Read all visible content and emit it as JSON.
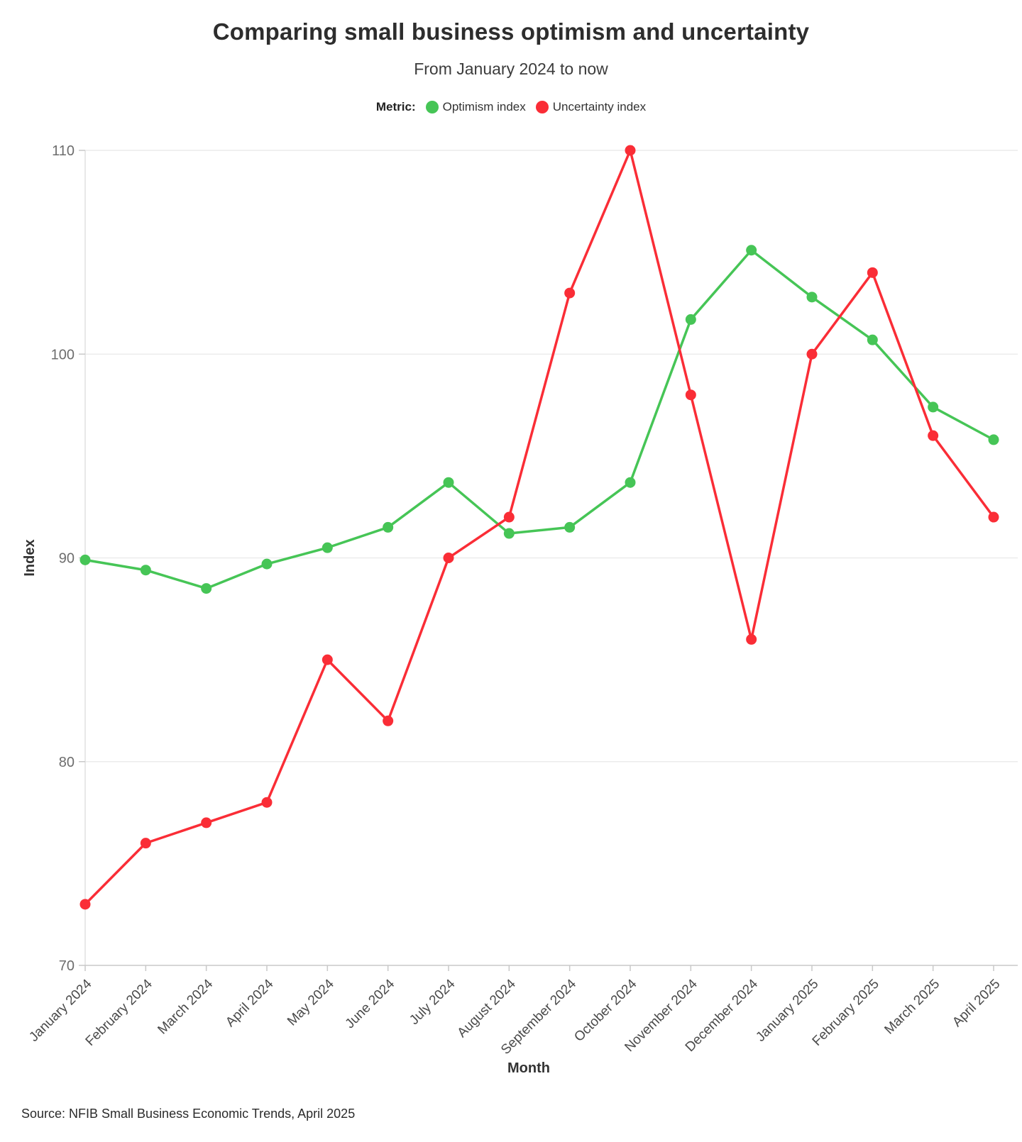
{
  "title": "Comparing small business optimism and uncertainty",
  "subtitle": "From January 2024 to now",
  "legend": {
    "label": "Metric:",
    "items": [
      {
        "label": "Optimism index",
        "color": "#46c556"
      },
      {
        "label": "Uncertainty index",
        "color": "#fa2d36"
      }
    ]
  },
  "source": "Source: NFIB Small Business Economic Trends, April 2025",
  "colors": {
    "optimism": "#46c556",
    "uncertainty": "#fa2d36",
    "gridline": "#ececec",
    "axis_line": "#c9c9c9",
    "y_axis_line": "#e0e0e0",
    "tick_label": "#6d6d6d",
    "month_label": "#4a4a4a",
    "axis_title": "#333333"
  },
  "chart_data": {
    "type": "line",
    "x": [
      "January 2024",
      "February 2024",
      "March 2024",
      "April 2024",
      "May 2024",
      "June 2024",
      "July 2024",
      "August 2024",
      "September 2024",
      "October 2024",
      "November 2024",
      "December 2024",
      "January 2025",
      "February 2025",
      "March 2025",
      "April 2025"
    ],
    "series": [
      {
        "name": "Optimism index",
        "color": "#46c556",
        "values": [
          89.9,
          89.4,
          88.5,
          89.7,
          90.5,
          91.5,
          93.7,
          91.2,
          91.5,
          93.7,
          101.7,
          105.1,
          102.8,
          100.7,
          97.4,
          95.8
        ]
      },
      {
        "name": "Uncertainty index",
        "color": "#fa2d36",
        "values": [
          73,
          76,
          77,
          78,
          85,
          82,
          90,
          92,
          103,
          110,
          98,
          86,
          100,
          104,
          96,
          92
        ]
      }
    ],
    "title": "Comparing small business optimism and uncertainty",
    "subtitle": "From January 2024 to now",
    "xlabel": "Month",
    "ylabel": "Index",
    "ylim": [
      70,
      110
    ],
    "yticks": [
      70,
      80,
      90,
      100,
      110
    ],
    "grid": "horizontal",
    "legend_position": "top"
  }
}
